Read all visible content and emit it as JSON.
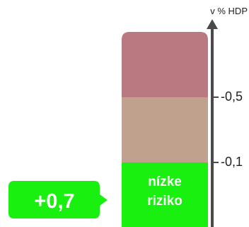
{
  "chart_data": {
    "type": "bar",
    "orientation": "vertical",
    "axis": {
      "unit_label": "v % HDP",
      "direction": "up"
    },
    "ticks": [
      {
        "label": "-0,5"
      },
      {
        "label": "-0,1"
      }
    ],
    "zones": [
      {
        "name": "high-risk",
        "label": "",
        "color": "#b87a80"
      },
      {
        "name": "medium-risk",
        "label": "",
        "color": "#bfa18d"
      },
      {
        "name": "low-risk",
        "label_lines": [
          "nízke",
          "riziko"
        ],
        "color": "#19f00f"
      }
    ],
    "callout": {
      "value_label": "+0,7",
      "color": "#19f00f"
    }
  }
}
